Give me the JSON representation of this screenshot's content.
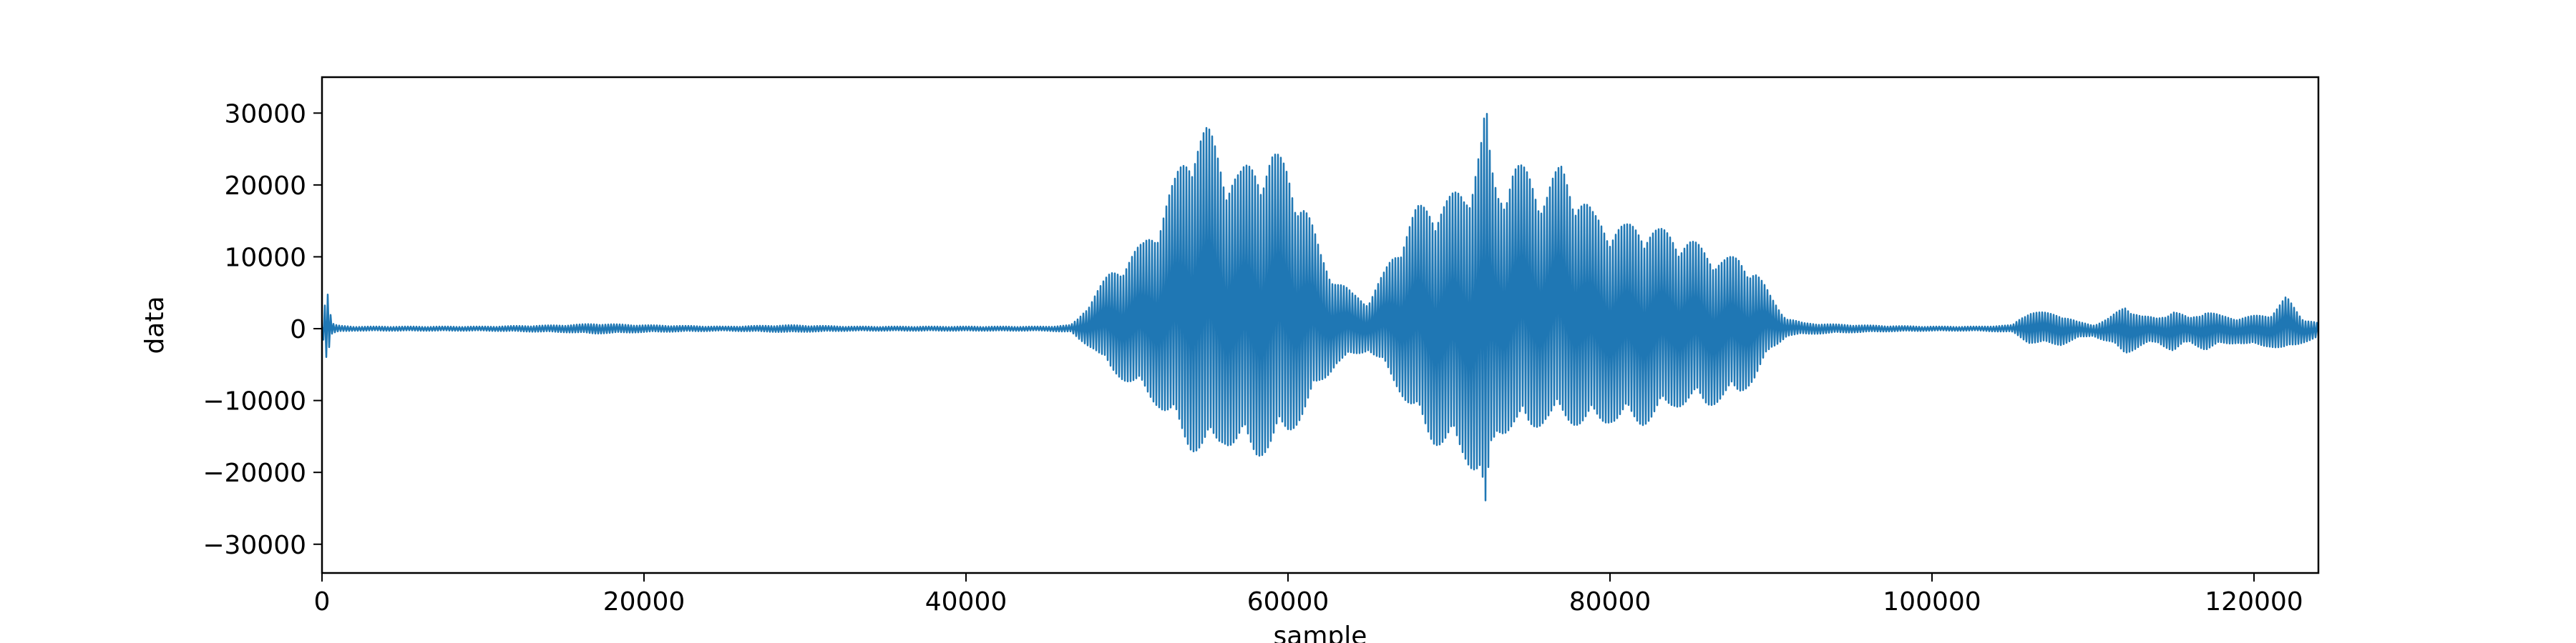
{
  "chart_data": {
    "type": "line",
    "title": "",
    "xlabel": "sample",
    "ylabel": "data",
    "xlim": [
      0,
      124000
    ],
    "ylim": [
      -34000,
      35000
    ],
    "grid": false,
    "legend": "none",
    "x_ticks": [
      0,
      20000,
      40000,
      60000,
      80000,
      100000,
      120000
    ],
    "x_tick_labels": [
      "0",
      "20000",
      "40000",
      "60000",
      "80000",
      "100000",
      "120000"
    ],
    "y_ticks": [
      -30000,
      -20000,
      -10000,
      0,
      10000,
      20000,
      30000
    ],
    "y_tick_labels": [
      "−30000",
      "−20000",
      "−10000",
      "0",
      "10000",
      "20000",
      "30000"
    ],
    "line_color": "#1f77b4",
    "series": [
      {
        "x": [
          0,
          300,
          600,
          900,
          1200,
          2000,
          5000,
          10000,
          15000,
          17000,
          20000,
          25000,
          29000,
          33000,
          40000,
          45000,
          46500,
          47000,
          48000,
          49000,
          50000,
          51000,
          52000,
          53000,
          54000,
          55000,
          56000,
          57000,
          58000,
          59000,
          60000,
          61000,
          62000,
          63000,
          64000,
          65000,
          66000,
          67000,
          68000,
          69000,
          70000,
          71000,
          72000,
          72300,
          72600,
          73000,
          74000,
          75000,
          76000,
          77000,
          78000,
          79000,
          80000,
          81000,
          82000,
          83000,
          84000,
          85000,
          86000,
          87000,
          88000,
          89000,
          90000,
          91000,
          92000,
          94000,
          97000,
          100000,
          103000,
          105000,
          106000,
          108000,
          109000,
          110000,
          111000,
          112000,
          113000,
          114000,
          115000,
          116000,
          117000,
          118000,
          119000,
          120000,
          121000,
          122000,
          123000,
          124000
        ],
        "upper": [
          300,
          6500,
          800,
          500,
          400,
          300,
          300,
          300,
          500,
          700,
          500,
          300,
          500,
          300,
          300,
          300,
          500,
          1500,
          5000,
          8000,
          10000,
          12000,
          16000,
          21000,
          28000,
          28200,
          24000,
          22000,
          24000,
          25000,
          23000,
          18000,
          11000,
          7000,
          5000,
          4000,
          8000,
          13000,
          17000,
          18000,
          18500,
          20000,
          27000,
          31500,
          23000,
          20000,
          23500,
          22000,
          20000,
          23000,
          20000,
          16000,
          15000,
          14500,
          15000,
          14000,
          13500,
          12500,
          11000,
          10000,
          10000,
          8500,
          4500,
          1500,
          800,
          600,
          400,
          300,
          300,
          500,
          2500,
          2000,
          1000,
          500,
          1500,
          3200,
          1800,
          1500,
          2500,
          1500,
          2500,
          1800,
          1500,
          1800,
          2000,
          4500,
          1500,
          800
        ],
        "lower": [
          -300,
          -4500,
          -800,
          -500,
          -400,
          -300,
          -300,
          -300,
          -500,
          -700,
          -500,
          -300,
          -500,
          -300,
          -300,
          -300,
          -500,
          -1500,
          -3000,
          -6000,
          -7500,
          -9000,
          -11000,
          -14000,
          -17000,
          -18000,
          -16000,
          -17000,
          -18000,
          -17000,
          -15000,
          -12000,
          -8000,
          -5000,
          -4000,
          -3000,
          -5500,
          -9000,
          -13000,
          -16000,
          -17000,
          -18500,
          -21000,
          -31000,
          -19000,
          -15000,
          -14000,
          -14500,
          -13000,
          -13000,
          -13500,
          -14000,
          -13000,
          -13500,
          -13500,
          -12500,
          -11000,
          -10500,
          -11000,
          -10000,
          -9500,
          -7000,
          -3000,
          -1000,
          -800,
          -600,
          -400,
          -300,
          -300,
          -500,
          -2000,
          -2300,
          -1500,
          -1000,
          -2000,
          -3500,
          -2500,
          -2000,
          -3200,
          -2000,
          -3000,
          -2300,
          -2000,
          -2500,
          -2500,
          -3000,
          -2000,
          -1200
        ]
      }
    ]
  }
}
